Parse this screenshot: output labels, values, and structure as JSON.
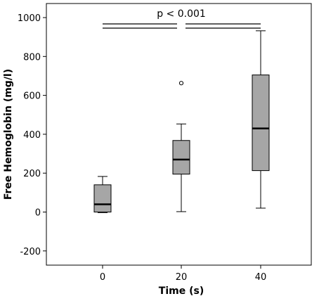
{
  "chart_data": {
    "type": "boxplot",
    "xlabel": "Time (s)",
    "ylabel": "Free Hemoglobin (mg/l)",
    "ylim": [
      -270,
      1030
    ],
    "yticks": [
      -200,
      0,
      200,
      400,
      600,
      800,
      1000
    ],
    "categories": [
      "0",
      "20",
      "40"
    ],
    "boxes": [
      {
        "category": "0",
        "whisker_low": -3,
        "q1": 0,
        "median": 40,
        "q3": 140,
        "whisker_high": 183,
        "outliers": []
      },
      {
        "category": "20",
        "whisker_low": 2,
        "q1": 195,
        "median": 270,
        "q3": 368,
        "whisker_high": 453,
        "outliers": [
          663
        ]
      },
      {
        "category": "40",
        "whisker_low": 20,
        "q1": 213,
        "median": 430,
        "q3": 705,
        "whisker_high": 932,
        "outliers": []
      }
    ],
    "annotation": {
      "text": "p < 0.001",
      "from": "0",
      "to": "40"
    },
    "colors": {
      "box_fill": "#a6a6a6",
      "line": "#000000"
    },
    "grid": false,
    "legend": "none"
  }
}
